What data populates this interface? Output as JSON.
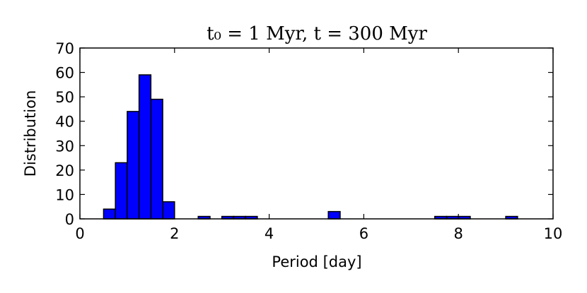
{
  "chart_data": {
    "type": "bar",
    "title": "t₀ = 1 Myr, t = 300 Myr",
    "xlabel": "Period [day]",
    "ylabel": "Distribution",
    "xlim": [
      0,
      10
    ],
    "ylim": [
      0,
      70
    ],
    "xticks": [
      "0",
      "2",
      "4",
      "6",
      "8",
      "10"
    ],
    "yticks": [
      "0",
      "10",
      "20",
      "30",
      "40",
      "50",
      "60",
      "70"
    ],
    "bin_width": 0.25,
    "bins": [
      {
        "x0": 0.5,
        "x1": 0.75,
        "value": 4
      },
      {
        "x0": 0.75,
        "x1": 1.0,
        "value": 23
      },
      {
        "x0": 1.0,
        "x1": 1.25,
        "value": 44
      },
      {
        "x0": 1.25,
        "x1": 1.5,
        "value": 59
      },
      {
        "x0": 1.5,
        "x1": 1.75,
        "value": 49
      },
      {
        "x0": 1.75,
        "x1": 2.0,
        "value": 7
      },
      {
        "x0": 2.5,
        "x1": 2.75,
        "value": 1
      },
      {
        "x0": 3.0,
        "x1": 3.25,
        "value": 1
      },
      {
        "x0": 3.25,
        "x1": 3.5,
        "value": 1
      },
      {
        "x0": 3.5,
        "x1": 3.75,
        "value": 1
      },
      {
        "x0": 5.25,
        "x1": 5.5,
        "value": 3
      },
      {
        "x0": 7.5,
        "x1": 7.75,
        "value": 1
      },
      {
        "x0": 7.75,
        "x1": 8.0,
        "value": 1
      },
      {
        "x0": 8.0,
        "x1": 8.25,
        "value": 1
      },
      {
        "x0": 9.0,
        "x1": 9.25,
        "value": 1
      }
    ],
    "bar_color": "#0000ff",
    "edge_color": "#000000",
    "grid": false
  }
}
